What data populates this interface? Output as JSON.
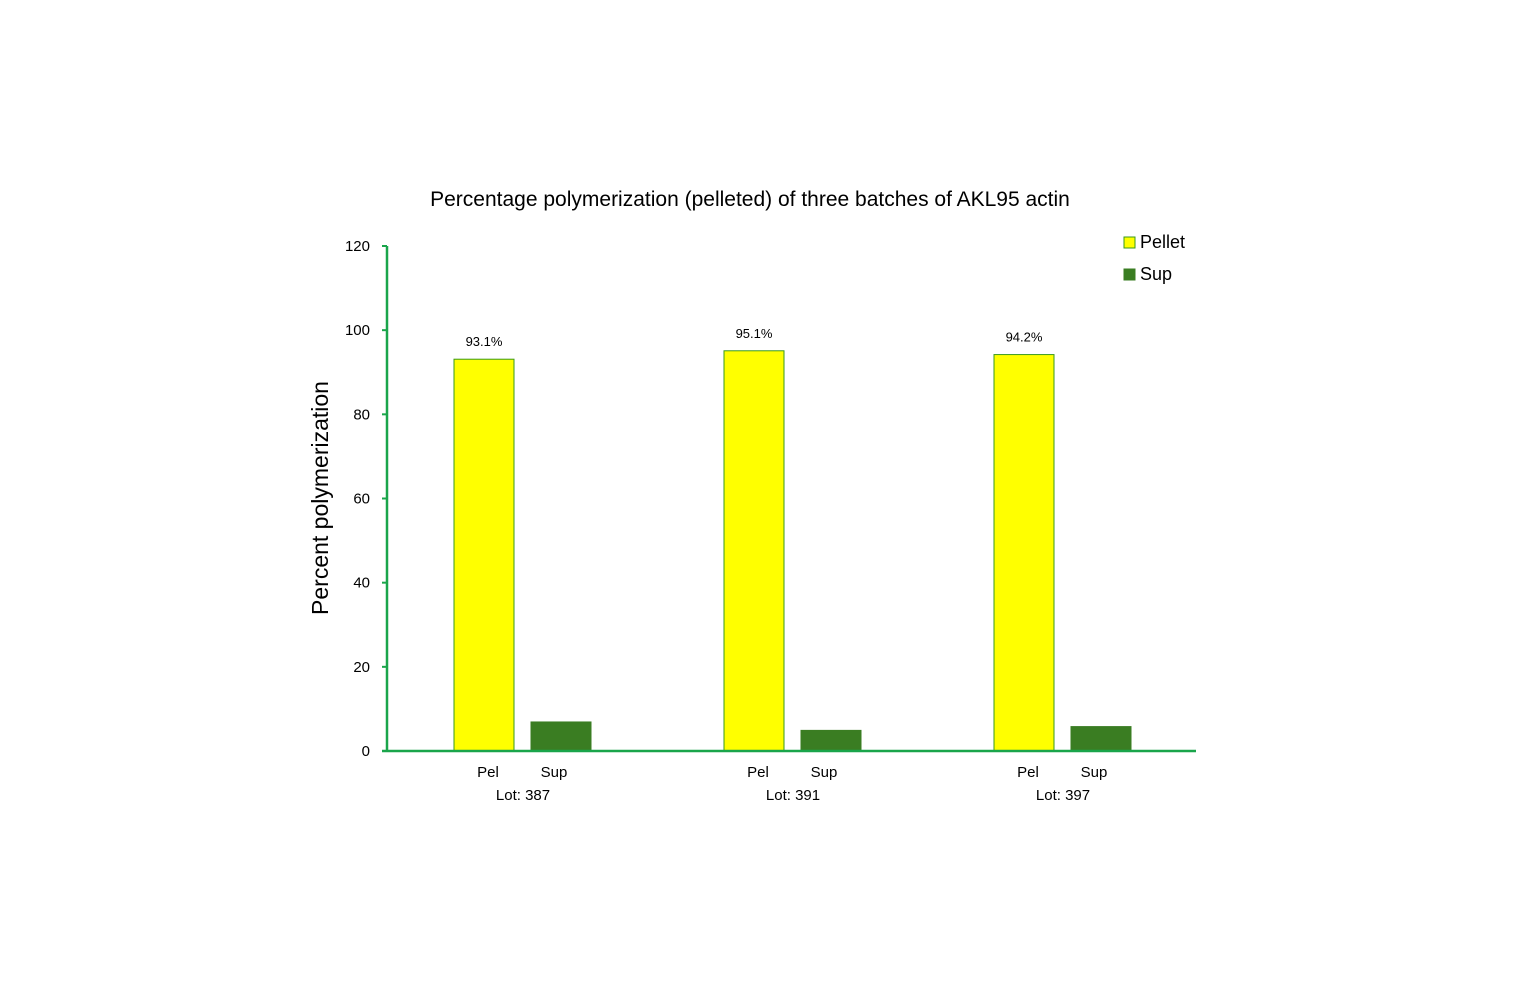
{
  "chart_data": {
    "type": "bar",
    "title": "Percentage polymerization (pelleted) of three batches of AKL95 actin",
    "xlabel": "",
    "ylabel": "Percent polymerization",
    "ylim": [
      0,
      120
    ],
    "yticks": [
      0,
      20,
      40,
      60,
      80,
      100,
      120
    ],
    "grid": false,
    "legend_position": "top-right",
    "groups": [
      {
        "label": "Lot: 387",
        "bars": [
          {
            "series": "Pellet",
            "label": "Pel",
            "value": 93.1,
            "data_label": "93.1%"
          },
          {
            "series": "Sup",
            "label": "Sup",
            "value": 6.9
          }
        ]
      },
      {
        "label": "Lot: 391",
        "bars": [
          {
            "series": "Pellet",
            "label": "Pel",
            "value": 95.1,
            "data_label": "95.1%"
          },
          {
            "series": "Sup",
            "label": "Sup",
            "value": 4.9
          }
        ]
      },
      {
        "label": "Lot: 397",
        "bars": [
          {
            "series": "Pellet",
            "label": "Pel",
            "value": 94.2,
            "data_label": "94.2%"
          },
          {
            "series": "Sup",
            "label": "Sup",
            "value": 5.8
          }
        ]
      }
    ],
    "series": [
      {
        "name": "Pellet",
        "color": "#ffff00",
        "border_color": "#3a9a1a"
      },
      {
        "name": "Sup",
        "color": "#3a7d22",
        "border_color": "#3a7d22"
      }
    ],
    "axis_color": "#1aa54b"
  }
}
